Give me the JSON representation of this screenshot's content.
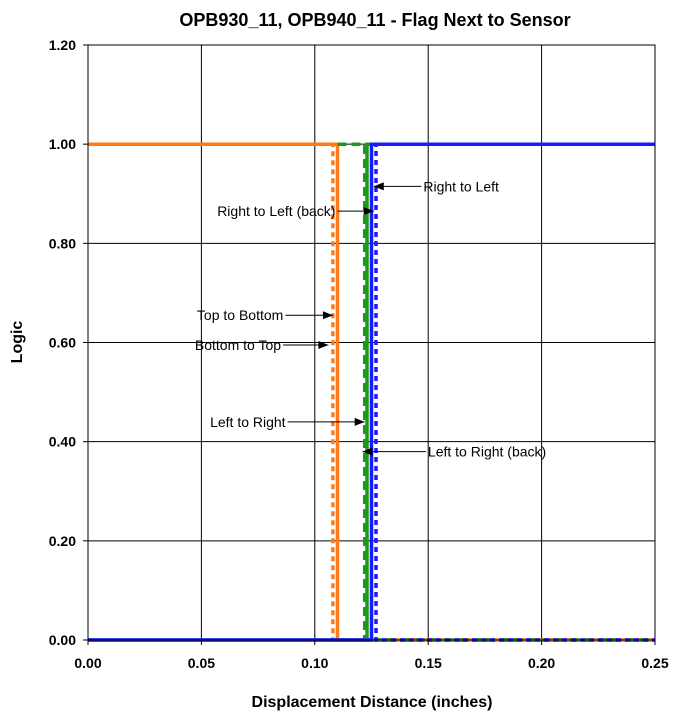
{
  "chart_data": {
    "type": "line",
    "title": "OPB930_11, OPB940_11 - Flag Next to Sensor",
    "xlabel": "Displacement Distance (inches)",
    "ylabel": "Logic",
    "xlim": [
      0,
      0.25
    ],
    "ylim": [
      0,
      1.2
    ],
    "x_ticks": [
      "0.00",
      "0.05",
      "0.10",
      "0.15",
      "0.20",
      "0.25"
    ],
    "y_ticks": [
      "0.00",
      "0.20",
      "0.40",
      "0.60",
      "0.80",
      "1.00",
      "1.20"
    ],
    "grid": true,
    "legend": "none",
    "series": [
      {
        "color": "#ff7a1a",
        "style": "solid",
        "x": [
          0,
          0.11,
          0.11,
          0.25
        ],
        "y": [
          1,
          1,
          0,
          0
        ]
      },
      {
        "color": "#ff7a1a",
        "style": "dotted",
        "x": [
          0,
          0.108,
          0.108,
          0.25
        ],
        "y": [
          1,
          1,
          0,
          0
        ]
      },
      {
        "color": "#1a9a1a",
        "style": "solid",
        "x": [
          0,
          0.123,
          0.123,
          0.25
        ],
        "y": [
          0,
          0,
          1,
          1
        ]
      },
      {
        "color": "#1a9a1a",
        "style": "dashed",
        "x": [
          0.11,
          0.122,
          0.122,
          0.25
        ],
        "y": [
          1,
          1,
          0,
          0
        ]
      },
      {
        "color": "#1a1aff",
        "style": "solid",
        "x": [
          0,
          0.125,
          0.125,
          0.25
        ],
        "y": [
          0,
          0,
          1,
          1
        ]
      },
      {
        "color": "#1a1aff",
        "style": "dotted",
        "x": [
          0.126,
          0.127,
          0.127,
          0.25
        ],
        "y": [
          1,
          1,
          0,
          0
        ]
      }
    ],
    "annotations": [
      {
        "text": "Right to Left",
        "side": "right",
        "tx": 0.147,
        "ty": 0.915,
        "ax": 0.126,
        "ay": 0.915
      },
      {
        "text": "Right to Left (back)",
        "side": "left",
        "tx": 0.11,
        "ty": 0.865,
        "ax": 0.126,
        "ay": 0.865
      },
      {
        "text": "Top to Bottom",
        "side": "left",
        "tx": 0.087,
        "ty": 0.655,
        "ax": 0.108,
        "ay": 0.655
      },
      {
        "text": "Bottom to Top",
        "side": "left",
        "tx": 0.086,
        "ty": 0.595,
        "ax": 0.106,
        "ay": 0.595
      },
      {
        "text": "Left to Right",
        "side": "left",
        "tx": 0.088,
        "ty": 0.44,
        "ax": 0.122,
        "ay": 0.44
      },
      {
        "text": "Left to Right (back)",
        "side": "right",
        "tx": 0.149,
        "ty": 0.38,
        "ax": 0.121,
        "ay": 0.38
      }
    ]
  }
}
